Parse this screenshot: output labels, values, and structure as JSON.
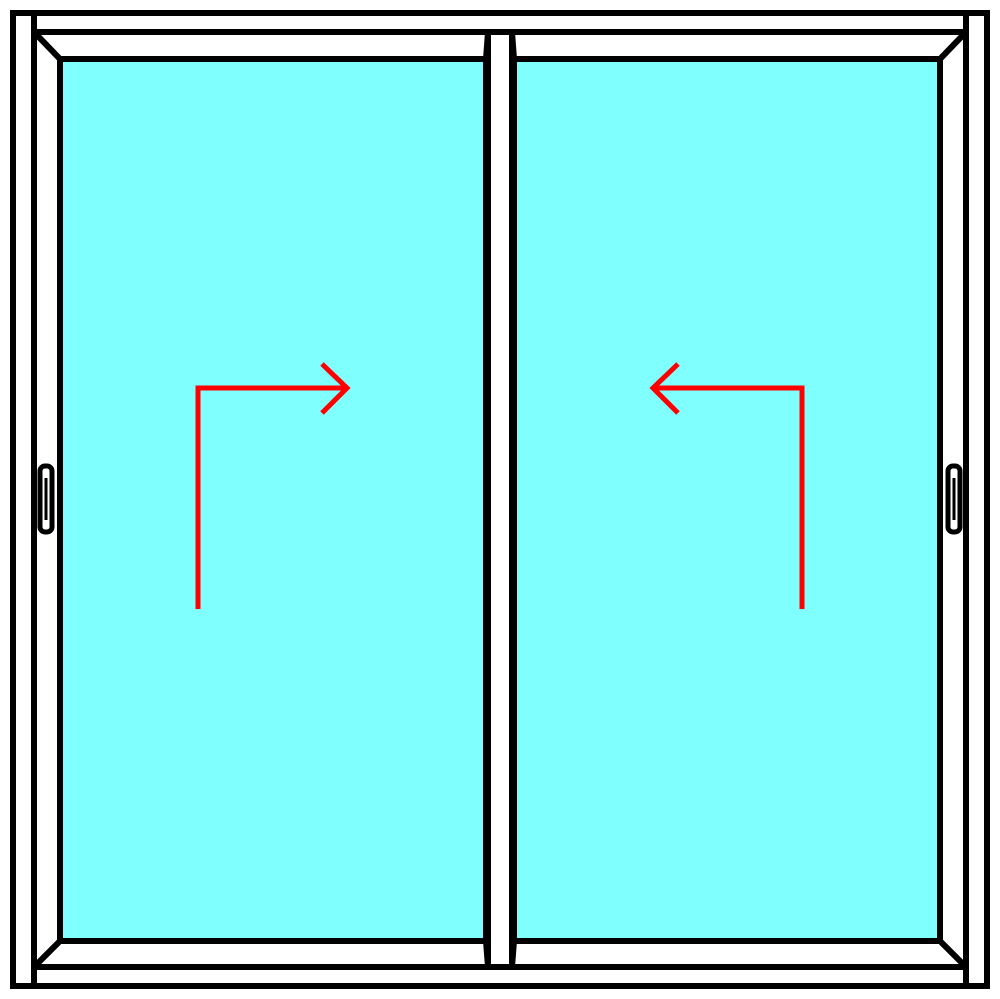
{
  "diagram": {
    "type": "sliding-window-elevation",
    "panel_count": 2,
    "colors": {
      "background": "#ffffff",
      "frame_stroke": "#000000",
      "glass_fill": "#80ffff",
      "arrow_stroke": "#ff0000"
    },
    "panels": [
      {
        "position": "left",
        "slide_direction": "right",
        "handle_side": "left",
        "arrow_icon": "l-shaped-right-arrow"
      },
      {
        "position": "right",
        "slide_direction": "left",
        "handle_side": "right",
        "arrow_icon": "l-shaped-left-arrow"
      }
    ]
  }
}
